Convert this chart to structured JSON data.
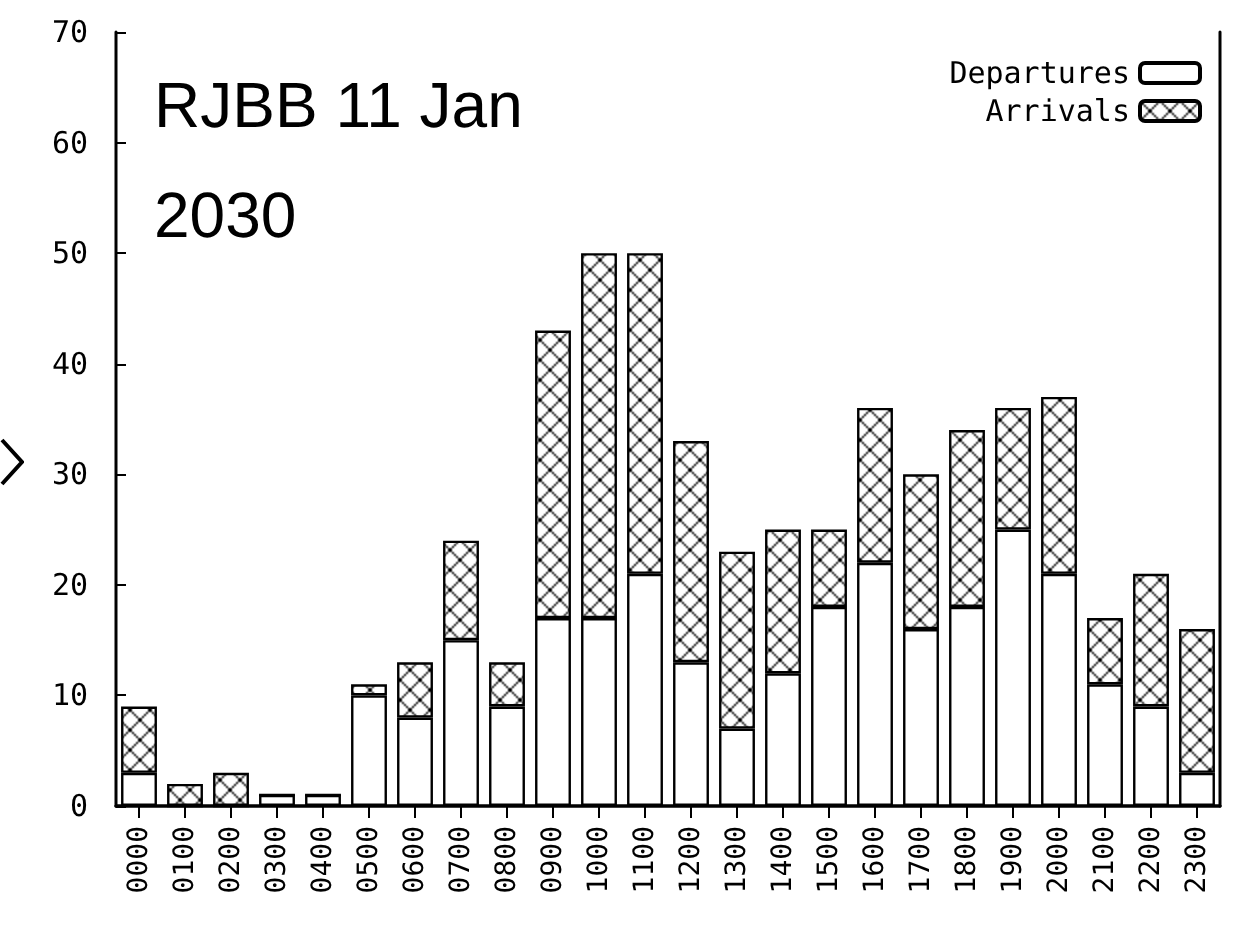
{
  "chart_data": {
    "type": "bar",
    "title": "RJBB 11 Jan 2030",
    "stacked": true,
    "categories": [
      "0000",
      "0100",
      "0200",
      "0300",
      "0400",
      "0500",
      "0600",
      "0700",
      "0800",
      "0900",
      "1000",
      "1100",
      "1200",
      "1300",
      "1400",
      "1500",
      "1600",
      "1700",
      "1800",
      "1900",
      "2000",
      "2100",
      "2200",
      "2300"
    ],
    "series": [
      {
        "name": "Departures",
        "color": "#ffffff",
        "values": [
          3,
          0,
          0,
          1,
          1,
          10,
          8,
          15,
          9,
          17,
          17,
          21,
          13,
          7,
          12,
          18,
          22,
          16,
          18,
          25,
          21,
          11,
          9,
          3
        ]
      },
      {
        "name": "Arrivals",
        "color": "#000000",
        "values": [
          6,
          2,
          3,
          0,
          0,
          1,
          5,
          9,
          4,
          26,
          33,
          29,
          20,
          16,
          13,
          7,
          14,
          14,
          16,
          11,
          16,
          6,
          12,
          13
        ]
      }
    ],
    "ylim": [
      0,
      70
    ],
    "yticks": [
      0,
      10,
      20,
      30,
      40,
      50,
      60,
      70
    ],
    "grid": false,
    "legend": "top right"
  }
}
